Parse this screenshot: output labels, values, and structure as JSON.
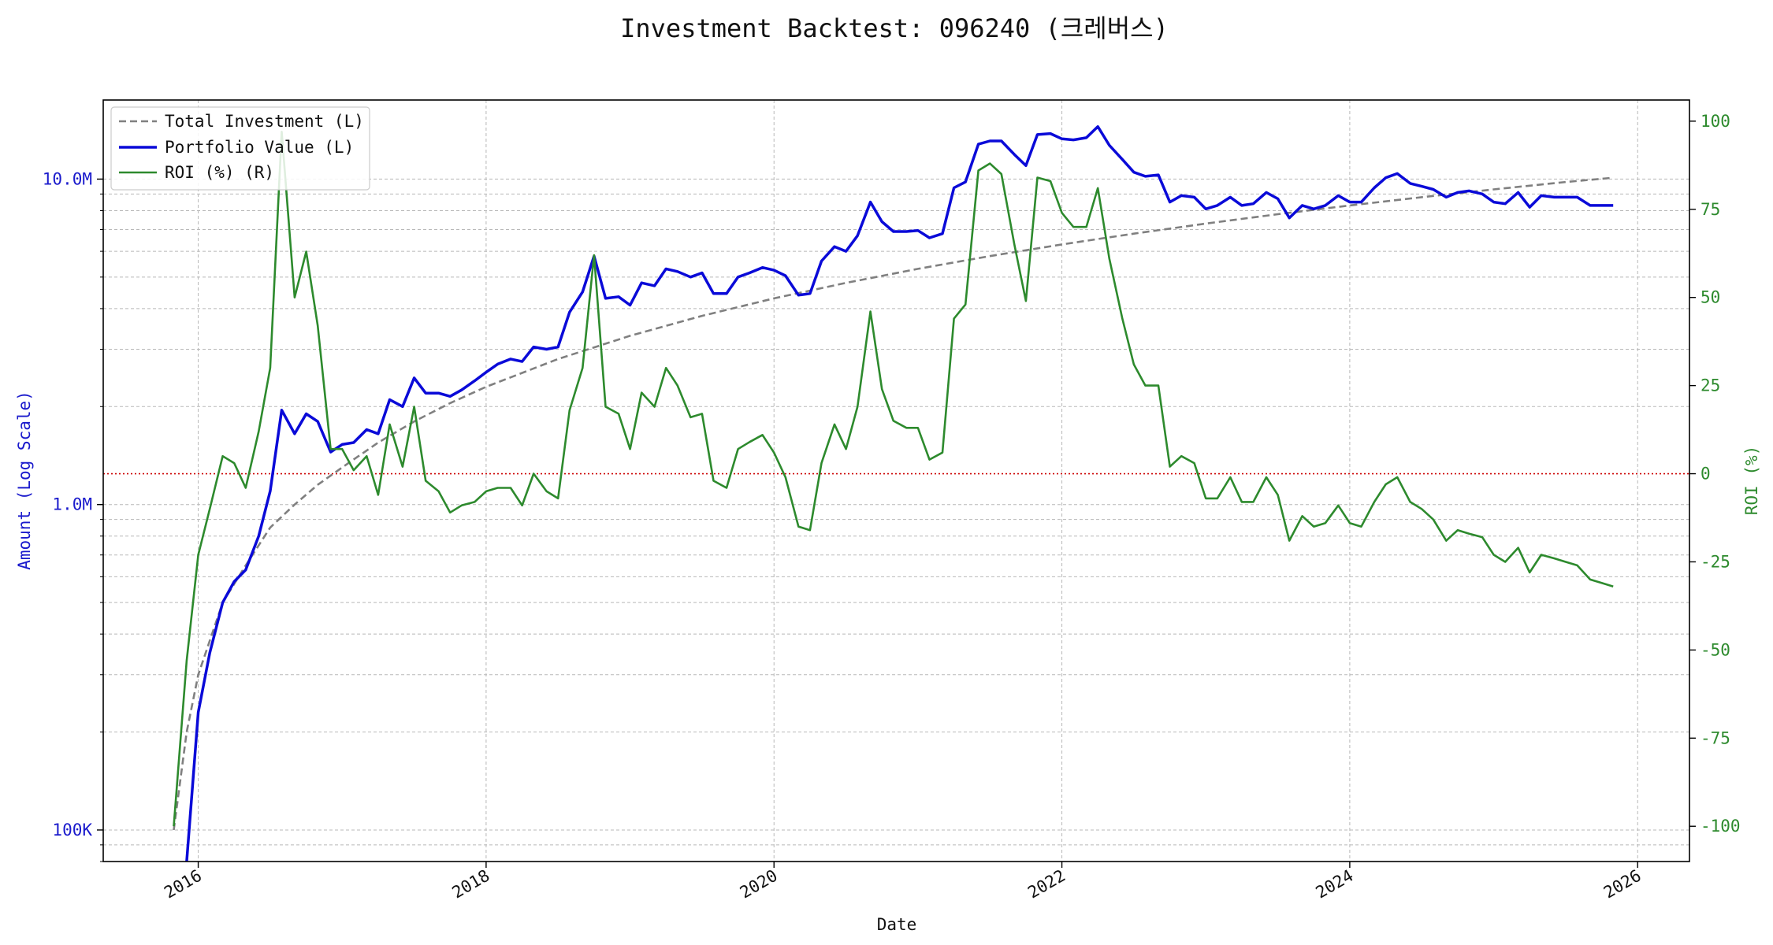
{
  "chart_data": {
    "type": "line",
    "title": "Investment Backtest: 096240 (크레버스)",
    "xlabel": "Date",
    "ylabel_left": "Amount (Log Scale)",
    "ylabel_right": "ROI (%)",
    "x_ticks": [
      "2016",
      "2018",
      "2020",
      "2022",
      "2024",
      "2026"
    ],
    "x_range": [
      2015.34,
      2026.36
    ],
    "left_axis": {
      "scale": "log",
      "range": [
        80000,
        17500000
      ],
      "ticks": [
        {
          "value": 100000,
          "label": "100K"
        },
        {
          "value": 1000000,
          "label": "1.0M"
        },
        {
          "value": 10000000,
          "label": "10.0M"
        }
      ],
      "color": "#1a1acc"
    },
    "right_axis": {
      "scale": "linear",
      "range": [
        -110,
        106
      ],
      "ticks": [
        -100,
        -75,
        -50,
        -25,
        0,
        25,
        50,
        75,
        100
      ],
      "color": "#2d8a2d"
    },
    "zero_line": {
      "value": 0,
      "color": "#cc0000"
    },
    "grid": true,
    "legend": {
      "position": "top-left",
      "entries": [
        "Total Investment (L)",
        "Portfolio Value (L)",
        "ROI (%) (R)"
      ]
    },
    "series": [
      {
        "name": "Total Investment (L)",
        "axis": "left",
        "style": "dashed",
        "color": "#808080",
        "points": [
          [
            2015.83,
            100000
          ],
          [
            2015.92,
            200000
          ],
          [
            2016.0,
            300000
          ],
          [
            2016.17,
            500000
          ],
          [
            2016.33,
            650000
          ],
          [
            2016.5,
            850000
          ],
          [
            2016.67,
            1000000
          ],
          [
            2016.83,
            1150000
          ],
          [
            2017.0,
            1300000
          ],
          [
            2017.25,
            1550000
          ],
          [
            2017.5,
            1800000
          ],
          [
            2017.75,
            2050000
          ],
          [
            2018.0,
            2300000
          ],
          [
            2018.5,
            2800000
          ],
          [
            2019.0,
            3300000
          ],
          [
            2019.5,
            3800000
          ],
          [
            2020.0,
            4300000
          ],
          [
            2020.5,
            4800000
          ],
          [
            2021.0,
            5300000
          ],
          [
            2021.5,
            5800000
          ],
          [
            2022.0,
            6300000
          ],
          [
            2022.5,
            6800000
          ],
          [
            2023.0,
            7300000
          ],
          [
            2023.5,
            7800000
          ],
          [
            2024.0,
            8300000
          ],
          [
            2024.5,
            8800000
          ],
          [
            2025.0,
            9300000
          ],
          [
            2025.5,
            9800000
          ],
          [
            2025.83,
            10100000
          ]
        ]
      },
      {
        "name": "Portfolio Value (L)",
        "axis": "left",
        "style": "solid",
        "color": "#0a0ad8",
        "points": [
          [
            2015.92,
            60000
          ],
          [
            2016.0,
            230000
          ],
          [
            2016.08,
            350000
          ],
          [
            2016.17,
            500000
          ],
          [
            2016.25,
            580000
          ],
          [
            2016.33,
            630000
          ],
          [
            2016.42,
            800000
          ],
          [
            2016.5,
            1100000
          ],
          [
            2016.58,
            1950000
          ],
          [
            2016.67,
            1650000
          ],
          [
            2016.75,
            1900000
          ],
          [
            2016.83,
            1800000
          ],
          [
            2016.92,
            1450000
          ],
          [
            2017.0,
            1530000
          ],
          [
            2017.08,
            1550000
          ],
          [
            2017.17,
            1700000
          ],
          [
            2017.25,
            1650000
          ],
          [
            2017.33,
            2100000
          ],
          [
            2017.42,
            2000000
          ],
          [
            2017.5,
            2450000
          ],
          [
            2017.58,
            2200000
          ],
          [
            2017.67,
            2200000
          ],
          [
            2017.75,
            2150000
          ],
          [
            2017.83,
            2250000
          ],
          [
            2017.92,
            2400000
          ],
          [
            2018.0,
            2550000
          ],
          [
            2018.08,
            2700000
          ],
          [
            2018.17,
            2800000
          ],
          [
            2018.25,
            2750000
          ],
          [
            2018.33,
            3050000
          ],
          [
            2018.42,
            3000000
          ],
          [
            2018.5,
            3050000
          ],
          [
            2018.58,
            3900000
          ],
          [
            2018.67,
            4500000
          ],
          [
            2018.75,
            5800000
          ],
          [
            2018.83,
            4300000
          ],
          [
            2018.92,
            4350000
          ],
          [
            2019.0,
            4100000
          ],
          [
            2019.08,
            4800000
          ],
          [
            2019.17,
            4700000
          ],
          [
            2019.25,
            5300000
          ],
          [
            2019.33,
            5200000
          ],
          [
            2019.42,
            5000000
          ],
          [
            2019.5,
            5150000
          ],
          [
            2019.58,
            4450000
          ],
          [
            2019.67,
            4450000
          ],
          [
            2019.75,
            5000000
          ],
          [
            2019.83,
            5150000
          ],
          [
            2019.92,
            5350000
          ],
          [
            2020.0,
            5250000
          ],
          [
            2020.08,
            5050000
          ],
          [
            2020.17,
            4400000
          ],
          [
            2020.25,
            4450000
          ],
          [
            2020.33,
            5600000
          ],
          [
            2020.42,
            6200000
          ],
          [
            2020.5,
            6000000
          ],
          [
            2020.58,
            6700000
          ],
          [
            2020.67,
            8500000
          ],
          [
            2020.75,
            7400000
          ],
          [
            2020.83,
            6900000
          ],
          [
            2020.92,
            6900000
          ],
          [
            2021.0,
            6950000
          ],
          [
            2021.08,
            6600000
          ],
          [
            2021.17,
            6800000
          ],
          [
            2021.25,
            9400000
          ],
          [
            2021.33,
            9800000
          ],
          [
            2021.42,
            12800000
          ],
          [
            2021.5,
            13100000
          ],
          [
            2021.58,
            13100000
          ],
          [
            2021.67,
            11900000
          ],
          [
            2021.75,
            11000000
          ],
          [
            2021.83,
            13700000
          ],
          [
            2021.92,
            13800000
          ],
          [
            2022.0,
            13300000
          ],
          [
            2022.08,
            13200000
          ],
          [
            2022.17,
            13400000
          ],
          [
            2022.25,
            14500000
          ],
          [
            2022.33,
            12700000
          ],
          [
            2022.42,
            11500000
          ],
          [
            2022.5,
            10500000
          ],
          [
            2022.58,
            10200000
          ],
          [
            2022.67,
            10300000
          ],
          [
            2022.75,
            8500000
          ],
          [
            2022.83,
            8900000
          ],
          [
            2022.92,
            8800000
          ],
          [
            2023.0,
            8100000
          ],
          [
            2023.08,
            8300000
          ],
          [
            2023.17,
            8800000
          ],
          [
            2023.25,
            8300000
          ],
          [
            2023.33,
            8400000
          ],
          [
            2023.42,
            9100000
          ],
          [
            2023.5,
            8700000
          ],
          [
            2023.58,
            7600000
          ],
          [
            2023.67,
            8300000
          ],
          [
            2023.75,
            8100000
          ],
          [
            2023.83,
            8300000
          ],
          [
            2023.92,
            8900000
          ],
          [
            2024.0,
            8500000
          ],
          [
            2024.08,
            8500000
          ],
          [
            2024.17,
            9400000
          ],
          [
            2024.25,
            10100000
          ],
          [
            2024.33,
            10400000
          ],
          [
            2024.42,
            9700000
          ],
          [
            2024.5,
            9500000
          ],
          [
            2024.58,
            9300000
          ],
          [
            2024.67,
            8800000
          ],
          [
            2024.75,
            9100000
          ],
          [
            2024.83,
            9200000
          ],
          [
            2024.92,
            9000000
          ],
          [
            2025.0,
            8500000
          ],
          [
            2025.08,
            8400000
          ],
          [
            2025.17,
            9100000
          ],
          [
            2025.25,
            8200000
          ],
          [
            2025.33,
            8900000
          ],
          [
            2025.42,
            8800000
          ],
          [
            2025.5,
            8800000
          ],
          [
            2025.58,
            8800000
          ],
          [
            2025.67,
            8300000
          ],
          [
            2025.75,
            8300000
          ],
          [
            2025.83,
            8300000
          ]
        ]
      },
      {
        "name": "ROI (%) (R)",
        "axis": "right",
        "style": "solid",
        "color": "#2d8a2d",
        "points": [
          [
            2015.83,
            -100
          ],
          [
            2015.92,
            -53
          ],
          [
            2016.0,
            -23
          ],
          [
            2016.08,
            -10
          ],
          [
            2016.17,
            5
          ],
          [
            2016.25,
            3
          ],
          [
            2016.33,
            -4
          ],
          [
            2016.42,
            12
          ],
          [
            2016.5,
            30
          ],
          [
            2016.58,
            97
          ],
          [
            2016.67,
            50
          ],
          [
            2016.75,
            63
          ],
          [
            2016.83,
            42
          ],
          [
            2016.92,
            7
          ],
          [
            2017.0,
            7
          ],
          [
            2017.08,
            1
          ],
          [
            2017.17,
            5
          ],
          [
            2017.25,
            -6
          ],
          [
            2017.33,
            14
          ],
          [
            2017.42,
            2
          ],
          [
            2017.5,
            19
          ],
          [
            2017.58,
            -2
          ],
          [
            2017.67,
            -5
          ],
          [
            2017.75,
            -11
          ],
          [
            2017.83,
            -9
          ],
          [
            2017.92,
            -8
          ],
          [
            2018.0,
            -5
          ],
          [
            2018.08,
            -4
          ],
          [
            2018.17,
            -4
          ],
          [
            2018.25,
            -9
          ],
          [
            2018.33,
            0
          ],
          [
            2018.42,
            -5
          ],
          [
            2018.5,
            -7
          ],
          [
            2018.58,
            18
          ],
          [
            2018.67,
            30
          ],
          [
            2018.75,
            62
          ],
          [
            2018.83,
            19
          ],
          [
            2018.92,
            17
          ],
          [
            2019.0,
            7
          ],
          [
            2019.08,
            23
          ],
          [
            2019.17,
            19
          ],
          [
            2019.25,
            30
          ],
          [
            2019.33,
            25
          ],
          [
            2019.42,
            16
          ],
          [
            2019.5,
            17
          ],
          [
            2019.58,
            -2
          ],
          [
            2019.67,
            -4
          ],
          [
            2019.75,
            7
          ],
          [
            2019.83,
            9
          ],
          [
            2019.92,
            11
          ],
          [
            2020.0,
            6
          ],
          [
            2020.08,
            -1
          ],
          [
            2020.17,
            -15
          ],
          [
            2020.25,
            -16
          ],
          [
            2020.33,
            3
          ],
          [
            2020.42,
            14
          ],
          [
            2020.5,
            7
          ],
          [
            2020.58,
            19
          ],
          [
            2020.67,
            46
          ],
          [
            2020.75,
            24
          ],
          [
            2020.83,
            15
          ],
          [
            2020.92,
            13
          ],
          [
            2021.0,
            13
          ],
          [
            2021.08,
            4
          ],
          [
            2021.17,
            6
          ],
          [
            2021.25,
            44
          ],
          [
            2021.33,
            48
          ],
          [
            2021.42,
            86
          ],
          [
            2021.5,
            88
          ],
          [
            2021.58,
            85
          ],
          [
            2021.67,
            65
          ],
          [
            2021.75,
            49
          ],
          [
            2021.83,
            84
          ],
          [
            2021.92,
            83
          ],
          [
            2022.0,
            74
          ],
          [
            2022.08,
            70
          ],
          [
            2022.17,
            70
          ],
          [
            2022.25,
            81
          ],
          [
            2022.33,
            61
          ],
          [
            2022.42,
            44
          ],
          [
            2022.5,
            31
          ],
          [
            2022.58,
            25
          ],
          [
            2022.67,
            25
          ],
          [
            2022.75,
            2
          ],
          [
            2022.83,
            5
          ],
          [
            2022.92,
            3
          ],
          [
            2023.0,
            -7
          ],
          [
            2023.08,
            -7
          ],
          [
            2023.17,
            -1
          ],
          [
            2023.25,
            -8
          ],
          [
            2023.33,
            -8
          ],
          [
            2023.42,
            -1
          ],
          [
            2023.5,
            -6
          ],
          [
            2023.58,
            -19
          ],
          [
            2023.67,
            -12
          ],
          [
            2023.75,
            -15
          ],
          [
            2023.83,
            -14
          ],
          [
            2023.92,
            -9
          ],
          [
            2024.0,
            -14
          ],
          [
            2024.08,
            -15
          ],
          [
            2024.17,
            -8
          ],
          [
            2024.25,
            -3
          ],
          [
            2024.33,
            -1
          ],
          [
            2024.42,
            -8
          ],
          [
            2024.5,
            -10
          ],
          [
            2024.58,
            -13
          ],
          [
            2024.67,
            -19
          ],
          [
            2024.75,
            -16
          ],
          [
            2024.83,
            -17
          ],
          [
            2024.92,
            -18
          ],
          [
            2025.0,
            -23
          ],
          [
            2025.08,
            -25
          ],
          [
            2025.17,
            -21
          ],
          [
            2025.25,
            -28
          ],
          [
            2025.33,
            -23
          ],
          [
            2025.42,
            -24
          ],
          [
            2025.5,
            -25
          ],
          [
            2025.58,
            -26
          ],
          [
            2025.67,
            -30
          ],
          [
            2025.75,
            -31
          ],
          [
            2025.83,
            -32
          ]
        ]
      }
    ]
  }
}
